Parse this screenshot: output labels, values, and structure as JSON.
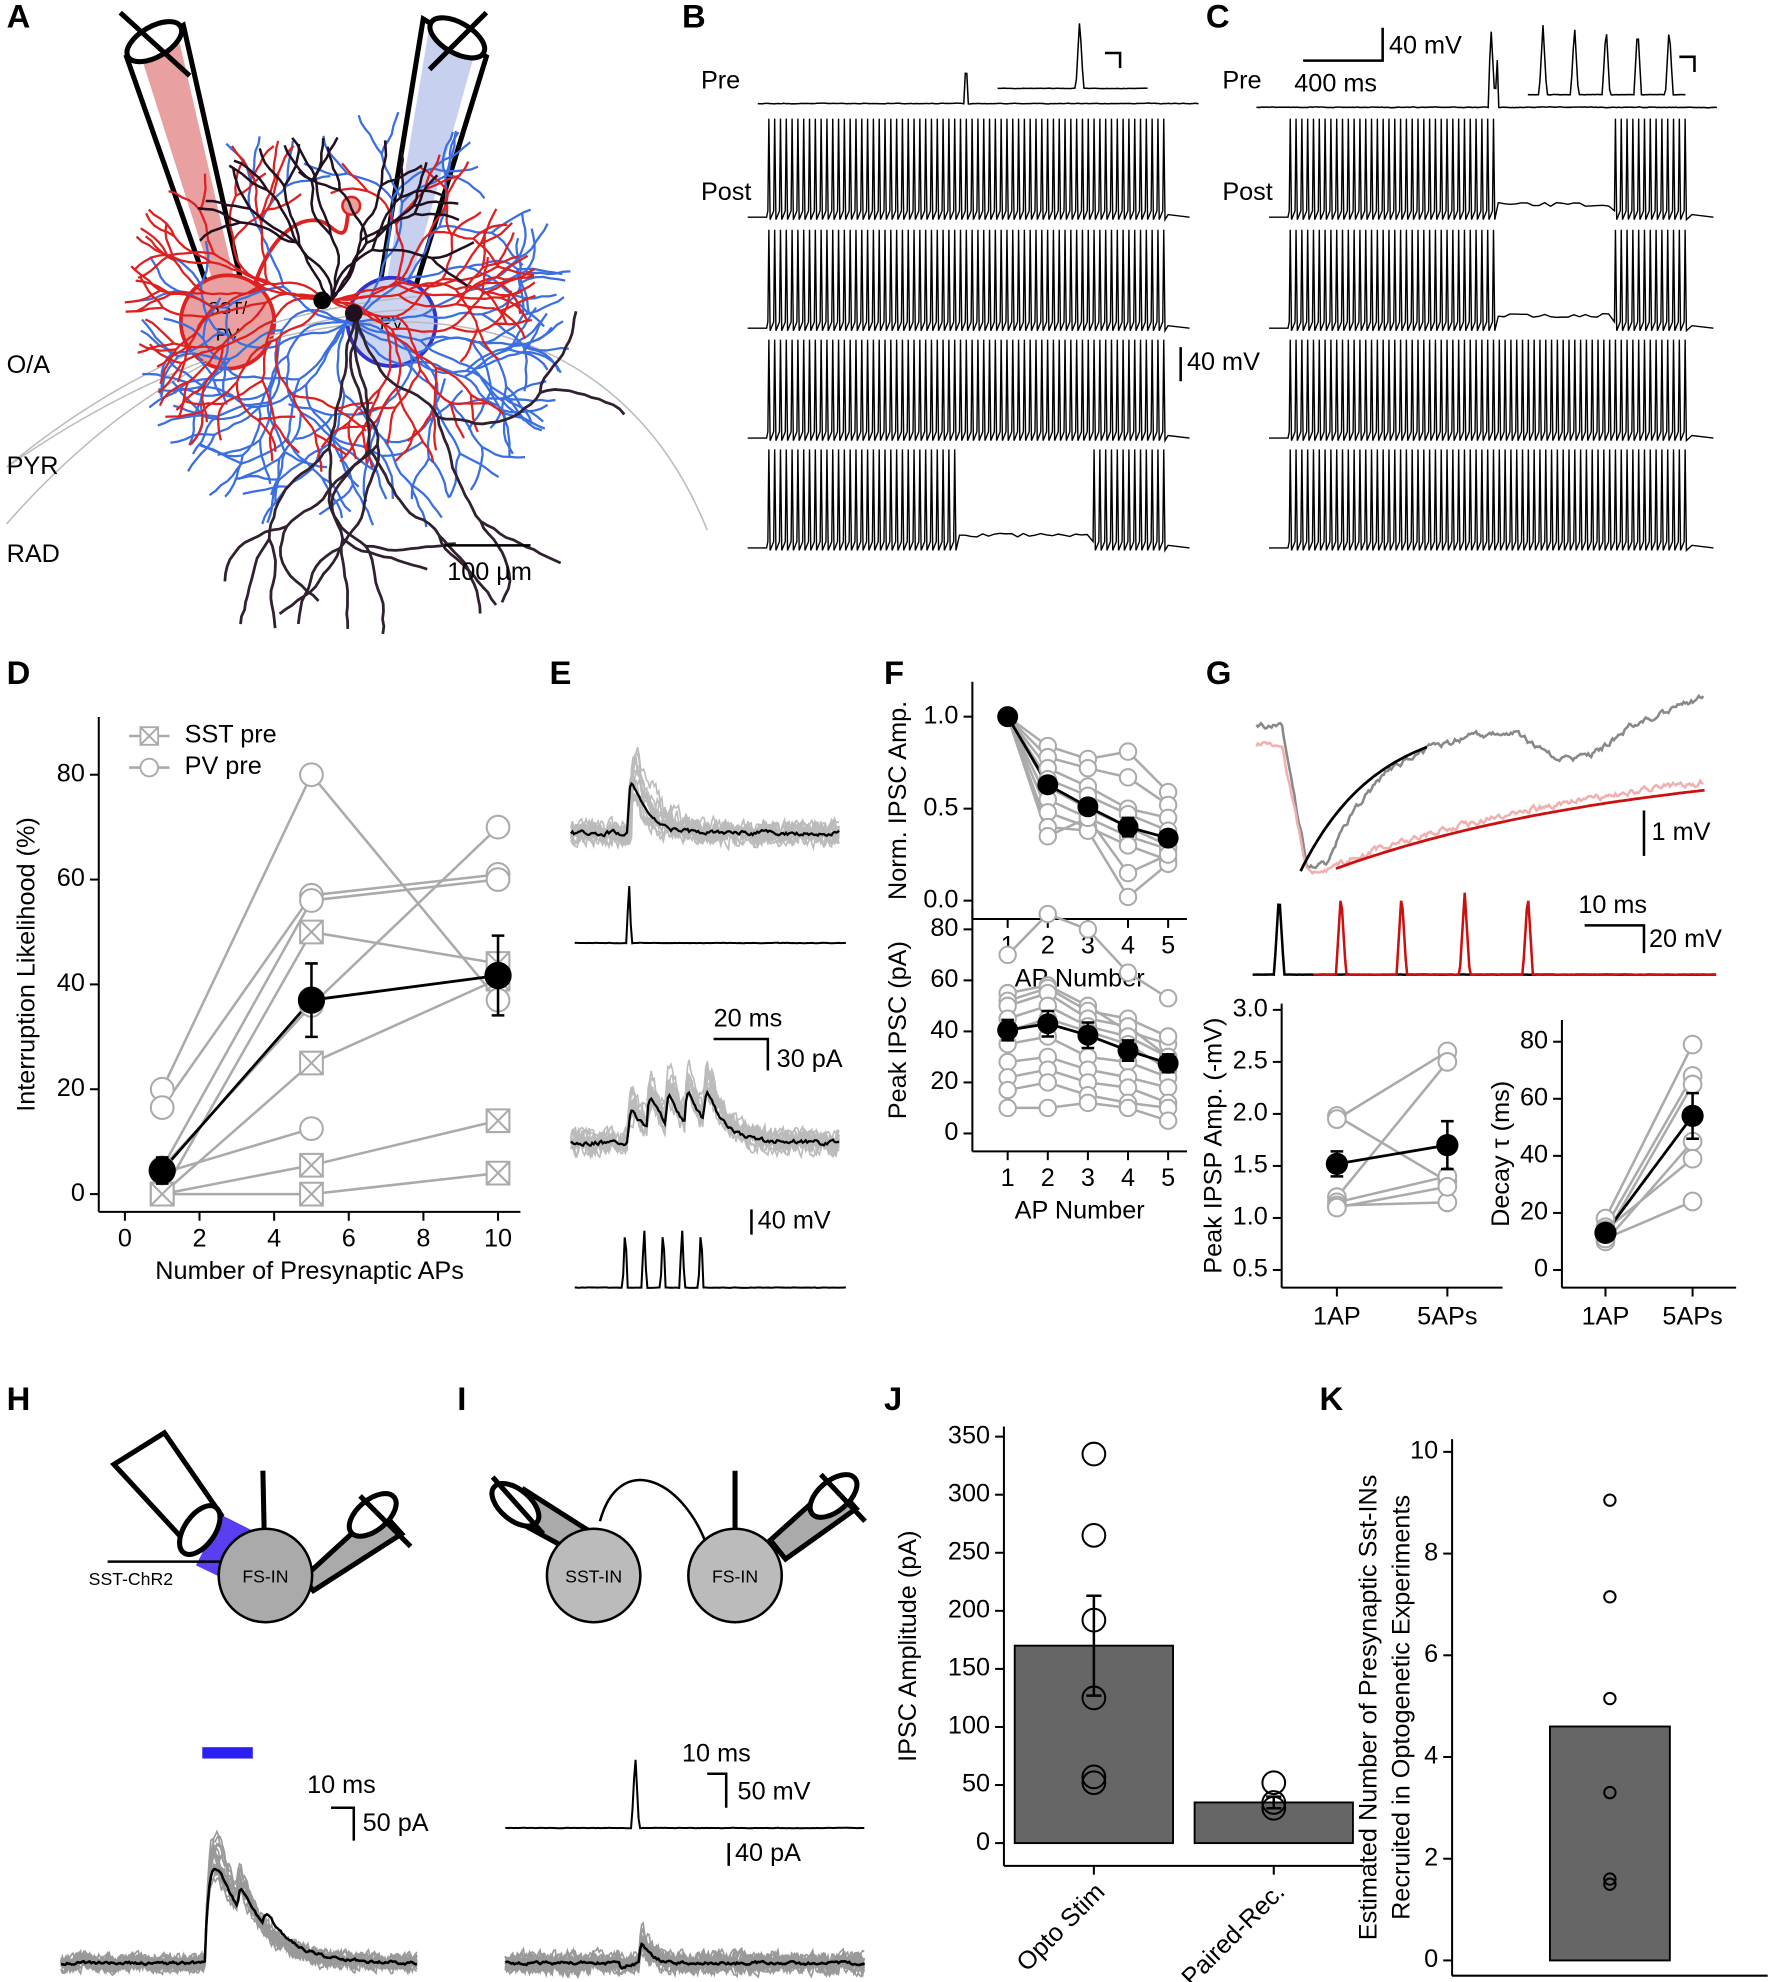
{
  "panel_letters": [
    "A",
    "B",
    "C",
    "D",
    "E",
    "F",
    "G",
    "H",
    "I",
    "J",
    "K"
  ],
  "annotations": {
    "a_pre_cell": [
      "SST/",
      "PV"
    ],
    "a_post_cell": "PV",
    "a_layers": [
      "O/A",
      "PYR",
      "RAD"
    ],
    "a_scale": "100 µm",
    "b_pre": "Pre",
    "b_post": "Post",
    "b_scale": "40 mV",
    "c_pre": "Pre",
    "c_post": "Post",
    "c_scale_v": "40 mV",
    "c_scale_t": "400 ms",
    "e_scale_t": "20 ms",
    "e_scale_i": "30 pA",
    "e_scale_v": "40 mV",
    "g_scale_v": "1 mV",
    "g_scale_t": "10 ms",
    "g_scale_v2": "20 mV",
    "h_label": "SST-ChR2",
    "h_cell": "FS-IN",
    "h_scale_t": "10 ms",
    "h_scale_i": "50 pA",
    "i_cell_pre": "SST-IN",
    "i_cell_post": "FS-IN",
    "i_scale_t": "10 ms",
    "i_scale_v": "50 mV",
    "i_scale_i": "40 pA"
  },
  "chart_data": [
    {
      "type": "line",
      "xlabel": "Number of Presynaptic APs",
      "ylabel": "Interruption Likelihood (%)",
      "x": [
        1,
        5,
        10
      ],
      "xlim": [
        -0.7,
        10.6
      ],
      "ylim": [
        -3.4,
        91
      ],
      "xticks": [
        0,
        2,
        4,
        6,
        8,
        10
      ],
      "yticks": [
        0,
        20,
        40,
        60,
        80
      ],
      "legend": "upper left",
      "series": [
        {
          "name": "SST pre",
          "color": "#aaaaaa",
          "marker": "square-x",
          "cells": [
            [
              0,
              50,
              44
            ],
            [
              0,
              25,
              41
            ],
            [
              0,
              5.5,
              14
            ],
            [
              0,
              0,
              4
            ]
          ]
        },
        {
          "name": "PV pre",
          "color": "#aaaaaa",
          "marker": "circle",
          "cells": [
            [
              20,
              80,
              37
            ],
            [
              16.5,
              57,
              61
            ],
            [
              5,
              56,
              60
            ],
            [
              5,
              36,
              70
            ],
            [
              4,
              12.5,
              null
            ]
          ]
        },
        {
          "color": "#000000",
          "marker": "dot",
          "values": [
            4.5,
            37,
            41.7
          ],
          "errors": [
            2.5,
            7,
            7.6
          ]
        }
      ]
    },
    {
      "type": "line",
      "xlabel": "AP Number",
      "ylabel": "Norm. IPSC Amp.",
      "x": [
        1,
        2,
        3,
        4,
        5
      ],
      "xlim": [
        0.12,
        5.47
      ],
      "ylim": [
        -0.1,
        1.19
      ],
      "xticks": [
        1,
        2,
        3,
        4,
        5
      ],
      "yticks": [
        {
          "value": 0,
          "label": "0.0"
        },
        0.5,
        {
          "value": 1,
          "label": "1.0"
        }
      ],
      "series": [
        {
          "color": "#aaaaaa",
          "marker": "circle",
          "cells": [
            [
              1,
              0.84,
              0.77,
              0.81,
              0.59
            ],
            [
              1,
              0.78,
              0.72,
              0.67,
              0.52
            ],
            [
              1,
              0.72,
              0.62,
              0.5,
              0.45
            ],
            [
              1,
              0.66,
              0.57,
              0.47,
              0.38
            ],
            [
              1,
              0.62,
              0.5,
              0.4,
              0.3
            ],
            [
              1,
              0.55,
              0.45,
              0.35,
              0.28
            ],
            [
              1,
              0.48,
              0.4,
              0.3,
              0.22
            ],
            [
              1,
              0.4,
              0.38,
              0.02,
              0.2
            ],
            [
              1,
              0.35,
              0.45,
              0.15,
              0.25
            ]
          ]
        },
        {
          "color": "#000000",
          "marker": "dot",
          "values": [
            1,
            0.63,
            0.51,
            0.4,
            0.34
          ],
          "errors": [
            0,
            0.04,
            0.04,
            0.05,
            0.04
          ]
        }
      ]
    },
    {
      "type": "line",
      "xlabel": "AP Number",
      "ylabel": "Peak IPSC (pA)",
      "x": [
        1,
        2,
        3,
        4,
        5
      ],
      "xlim": [
        0.12,
        5.47
      ],
      "ylim": [
        -7,
        88
      ],
      "xticks": [
        1,
        2,
        3,
        4,
        5
      ],
      "yticks": [
        0,
        20,
        40,
        60,
        80
      ],
      "series": [
        {
          "color": "#aaaaaa",
          "marker": "circle",
          "cells": [
            [
              70,
              86,
              80,
              63,
              53
            ],
            [
              55,
              58,
              50,
              40,
              35
            ],
            [
              52,
              57,
              48,
              45,
              38
            ],
            [
              50,
              55,
              45,
              42,
              30
            ],
            [
              45,
              50,
              42,
              38,
              30
            ],
            [
              40,
              45,
              40,
              35,
              25
            ],
            [
              35,
              38,
              30,
              28,
              22
            ],
            [
              28,
              30,
              25,
              22,
              18
            ],
            [
              22,
              25,
              20,
              18,
              12
            ],
            [
              17,
              20,
              15,
              12,
              10
            ],
            [
              10,
              10,
              12,
              10,
              5
            ]
          ]
        },
        {
          "color": "#000000",
          "marker": "dot",
          "values": [
            40.5,
            43,
            38.5,
            32.5,
            27.5
          ],
          "errors": [
            4,
            5,
            5,
            4,
            3.5
          ]
        }
      ]
    },
    {
      "type": "line",
      "ylabel": "Peak IPSP Amp. (-mV)",
      "categories": [
        "1AP",
        "5APs"
      ],
      "ylim": [
        0.33,
        3.06
      ],
      "yticks": [
        0.5,
        {
          "value": 1,
          "label": "1.0"
        },
        1.5,
        {
          "value": 2,
          "label": "2.0"
        },
        2.5,
        {
          "value": 3,
          "label": "3.0"
        }
      ],
      "series": [
        {
          "color": "#aaaaaa",
          "marker": "circle",
          "cells": [
            [
              1.98,
              1.35
            ],
            [
              1.95,
              2.6
            ],
            [
              1.2,
              2.5
            ],
            [
              1.15,
              1.4
            ],
            [
              1.12,
              1.15
            ],
            [
              1.1,
              1.3
            ]
          ]
        },
        {
          "color": "#000000",
          "marker": "dot",
          "values": [
            1.52,
            1.7
          ],
          "errors": [
            0.12,
            0.23
          ]
        }
      ]
    },
    {
      "type": "line",
      "ylabel": "Decay τ (ms)",
      "categories": [
        "1AP",
        "5APs"
      ],
      "ylim": [
        -6.2,
        87.6
      ],
      "yticks": [
        0,
        20,
        40,
        60,
        80
      ],
      "series": [
        {
          "color": "#aaaaaa",
          "marker": "circle",
          "cells": [
            [
              18,
              79
            ],
            [
              15,
              68
            ],
            [
              12,
              65
            ],
            [
              10,
              45
            ],
            [
              14,
              39
            ],
            [
              11,
              24
            ]
          ]
        },
        {
          "color": "#000000",
          "marker": "dot",
          "values": [
            13,
            54
          ],
          "errors": [
            2,
            8
          ]
        }
      ]
    },
    {
      "type": "bar",
      "ylabel": "IPSC Amplitude (pA)",
      "categories": [
        "Opto Stim",
        "Paired-Rec."
      ],
      "xtick_rotation": 45,
      "values": [
        170,
        35
      ],
      "errors": [
        43,
        5
      ],
      "points": [
        [
          335,
          265,
          192,
          125,
          57,
          52
        ],
        [
          52,
          35,
          30
        ]
      ],
      "color": "#666666",
      "ylim": [
        -19.6,
        358.7
      ],
      "yticks": [
        0,
        50,
        100,
        150,
        200,
        250,
        300,
        350
      ]
    },
    {
      "type": "bar",
      "ylabel_lines": [
        "Estimated Number of Presynaptic Sst-INs",
        "Recruited in Optogenetic Experiments"
      ],
      "categories": [
        null
      ],
      "values": [
        4.6
      ],
      "points": [
        [
          9.05,
          7.15,
          5.15,
          3.3,
          1.6,
          1.5
        ]
      ],
      "color": "#666666",
      "ylim": [
        -0.3,
        10.25
      ],
      "yticks": [
        0,
        2,
        4,
        6,
        8,
        10
      ]
    }
  ]
}
